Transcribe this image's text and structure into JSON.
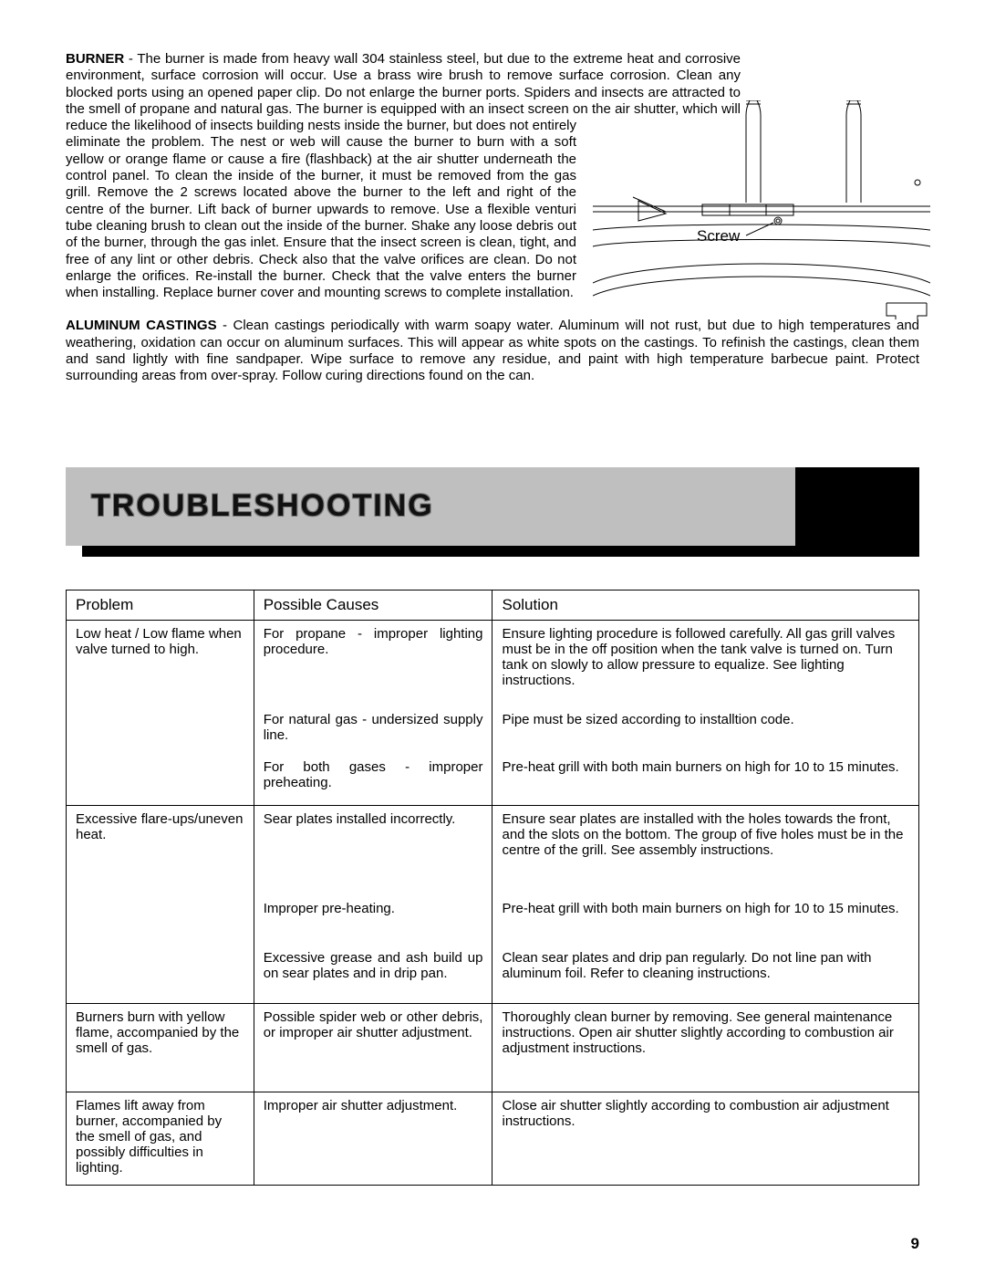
{
  "burner": {
    "heading": "BURNER",
    "text_after_heading": " - The burner is made from heavy wall 304 stainless steel, but due to the extreme heat and corrosive environment, surface corrosion will occur.  Use a brass wire brush to remove surface corrosion.  Clean any blocked ports using an opened paper clip.  Do not enlarge the burner ports.  Spiders and insects are attracted to the smell of propane and natural gas.  The burner is equipped with an insect screen on the air shutter, which will reduce the likelihood of insects building nests inside the burner, but does not entirely eliminate the problem.  The nest or web will cause the burner to burn with a soft yellow or orange flame or cause a fire (flashback) at the air shutter underneath the control panel.  To clean the inside of the burner, it must be removed from the gas grill.  Remove the 2 screws located above the burner to the left and right of the centre of the burner.  Lift back of burner upwards to remove.  Use a flexible venturi tube cleaning brush to clean out the inside of the burner.  Shake any loose debris out of the burner, through the gas inlet.  Ensure that the insect screen is clean, tight, and free of any lint or other debris.  Check also that the valve orifices are clean.  Do not enlarge the orifices.  Re-install the burner.  Check that the valve enters the burner when installing.  Replace burner cover and mounting screws to complete installation."
  },
  "aluminum": {
    "heading": "ALUMINUM CASTINGS",
    "text_after_heading": " - Clean castings periodically with warm soapy water.  Aluminum will not rust, but due to high temperatures and weathering, oxidation can occur on aluminum surfaces.  This will appear as white spots on the castings.  To refinish the castings, clean them and sand lightly with fine sandpaper.  Wipe surface to remove any residue, and paint with high temperature barbecue paint.  Protect surrounding areas from over-spray.  Follow curing directions found on the can."
  },
  "diagram": {
    "label": "Screw",
    "label_fontsize": 17,
    "stroke": "#000000",
    "stroke_width": 1
  },
  "banner": {
    "title": "TROUBLESHOOTING",
    "grey": "#bfbfbf",
    "black": "#000000"
  },
  "table": {
    "headers": {
      "c1": "Problem",
      "c2": "Possible Causes",
      "c3": "Solution"
    },
    "col_widths_pct": [
      22,
      28,
      50
    ],
    "border_color": "#000000",
    "font_size": 15,
    "rows": [
      {
        "problem": "Low heat / Low flame when valve turned to high.",
        "pairs": [
          {
            "cause": "For propane - improper lighting procedure.",
            "solution": "Ensure lighting procedure is followed carefully.  All gas grill valves must be in the off position when the tank valve is turned on.  Turn tank on slowly to allow pressure to equalize.  See lighting instructions."
          },
          {
            "cause": "For natural gas - undersized supply line.",
            "solution": "Pipe must be sized according to installtion code."
          },
          {
            "cause": "For both gases - improper preheating.",
            "solution": "Pre-heat grill with both main burners on high for 10 to 15 minutes."
          }
        ]
      },
      {
        "problem": "Excessive flare-ups/uneven heat.",
        "pairs": [
          {
            "cause": "Sear plates installed incorrectly.",
            "solution": "Ensure sear plates are installed with the holes towards the front, and the slots on the bottom.  The group of five holes must be in the centre of the grill.  See assembly instructions."
          },
          {
            "cause": "Improper pre-heating.",
            "solution": "Pre-heat grill with both main burners on high for 10 to 15 minutes."
          },
          {
            "cause": "Excessive grease and ash build up on sear plates and in drip pan.",
            "solution": "Clean sear plates and drip pan regularly.  Do not line pan with aluminum foil.  Refer to cleaning instructions."
          }
        ]
      },
      {
        "problem": "Burners burn with yellow flame, accompanied by the smell of gas.",
        "pairs": [
          {
            "cause": "Possible spider web or other debris, or improper air shutter adjustment.",
            "solution": "Thoroughly clean burner by removing.  See general maintenance instructions.  Open air shutter slightly according to combustion air adjustment instructions."
          }
        ],
        "extra_bottom_pad": 24
      },
      {
        "problem": "Flames lift away from burner, accompanied by the smell of gas, and possibly difficulties in lighting.",
        "pairs": [
          {
            "cause": "Improper air shutter adjustment.",
            "solution": "Close air shutter slightly according to combustion air adjustment instructions."
          }
        ],
        "extra_bottom_pad": 10
      }
    ]
  },
  "page_number": "9",
  "colors": {
    "text": "#000000",
    "background": "#ffffff"
  }
}
